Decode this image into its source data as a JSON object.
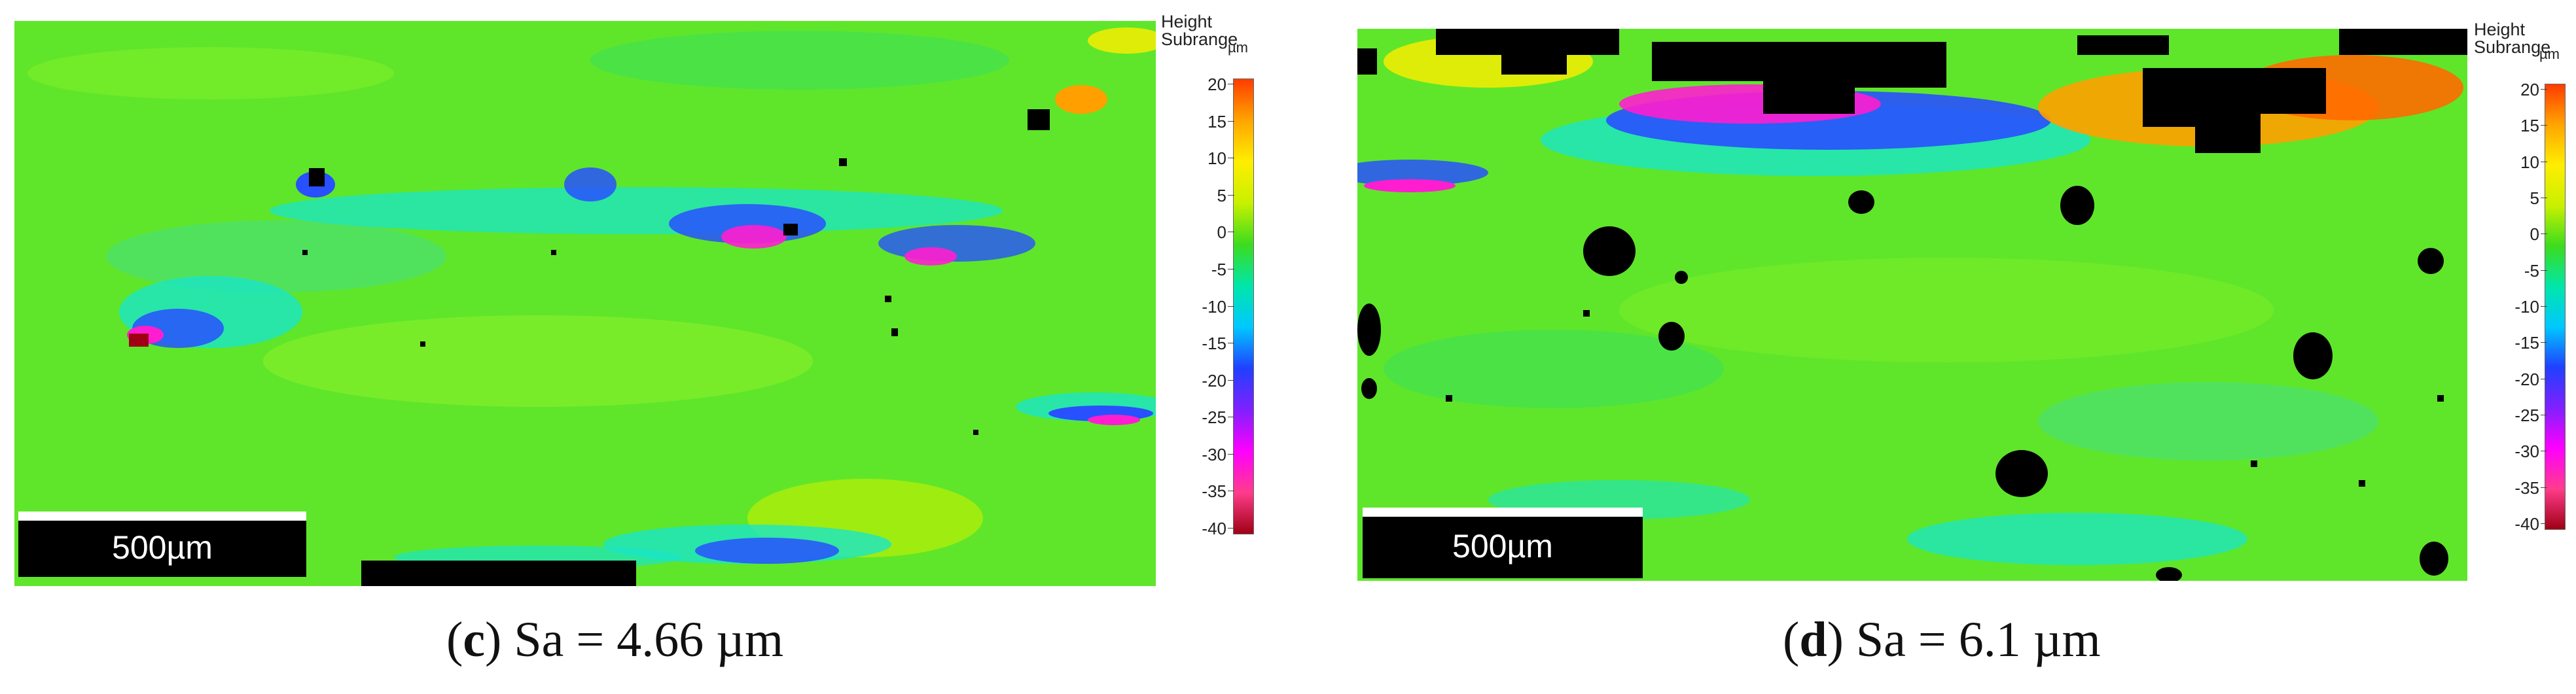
{
  "legend": {
    "title_line1": "Height",
    "title_line2": "Subrange",
    "unit": "µm",
    "ticks": [
      "20",
      "15",
      "10",
      "5",
      "0",
      "-5",
      "-10",
      "-15",
      "-20",
      "-25",
      "-30",
      "-35",
      "-40"
    ],
    "gradient_colors": [
      "#ff3c00",
      "#ffa500",
      "#ffee00",
      "#c8f000",
      "#3cdc1e",
      "#00e6aa",
      "#00c8ff",
      "#2040ff",
      "#8020ff",
      "#ff00ff",
      "#ff3c8c",
      "#a00014"
    ]
  },
  "panels": [
    {
      "scale_label": "500µm",
      "caption_letter": "c",
      "caption_rest": ") Sa = 4.66 µm",
      "caption_open": "("
    },
    {
      "scale_label": "500µm",
      "caption_letter": "d",
      "caption_rest": ") Sa = 6.1 µm",
      "caption_open": "("
    }
  ],
  "colors": {
    "base_green": "#5fe62a",
    "cyan": "#19e6c8",
    "blue": "#2850ff",
    "magenta": "#ff1ecf",
    "yellow": "#e6f000",
    "orange": "#ffa000",
    "void": "#000000"
  }
}
